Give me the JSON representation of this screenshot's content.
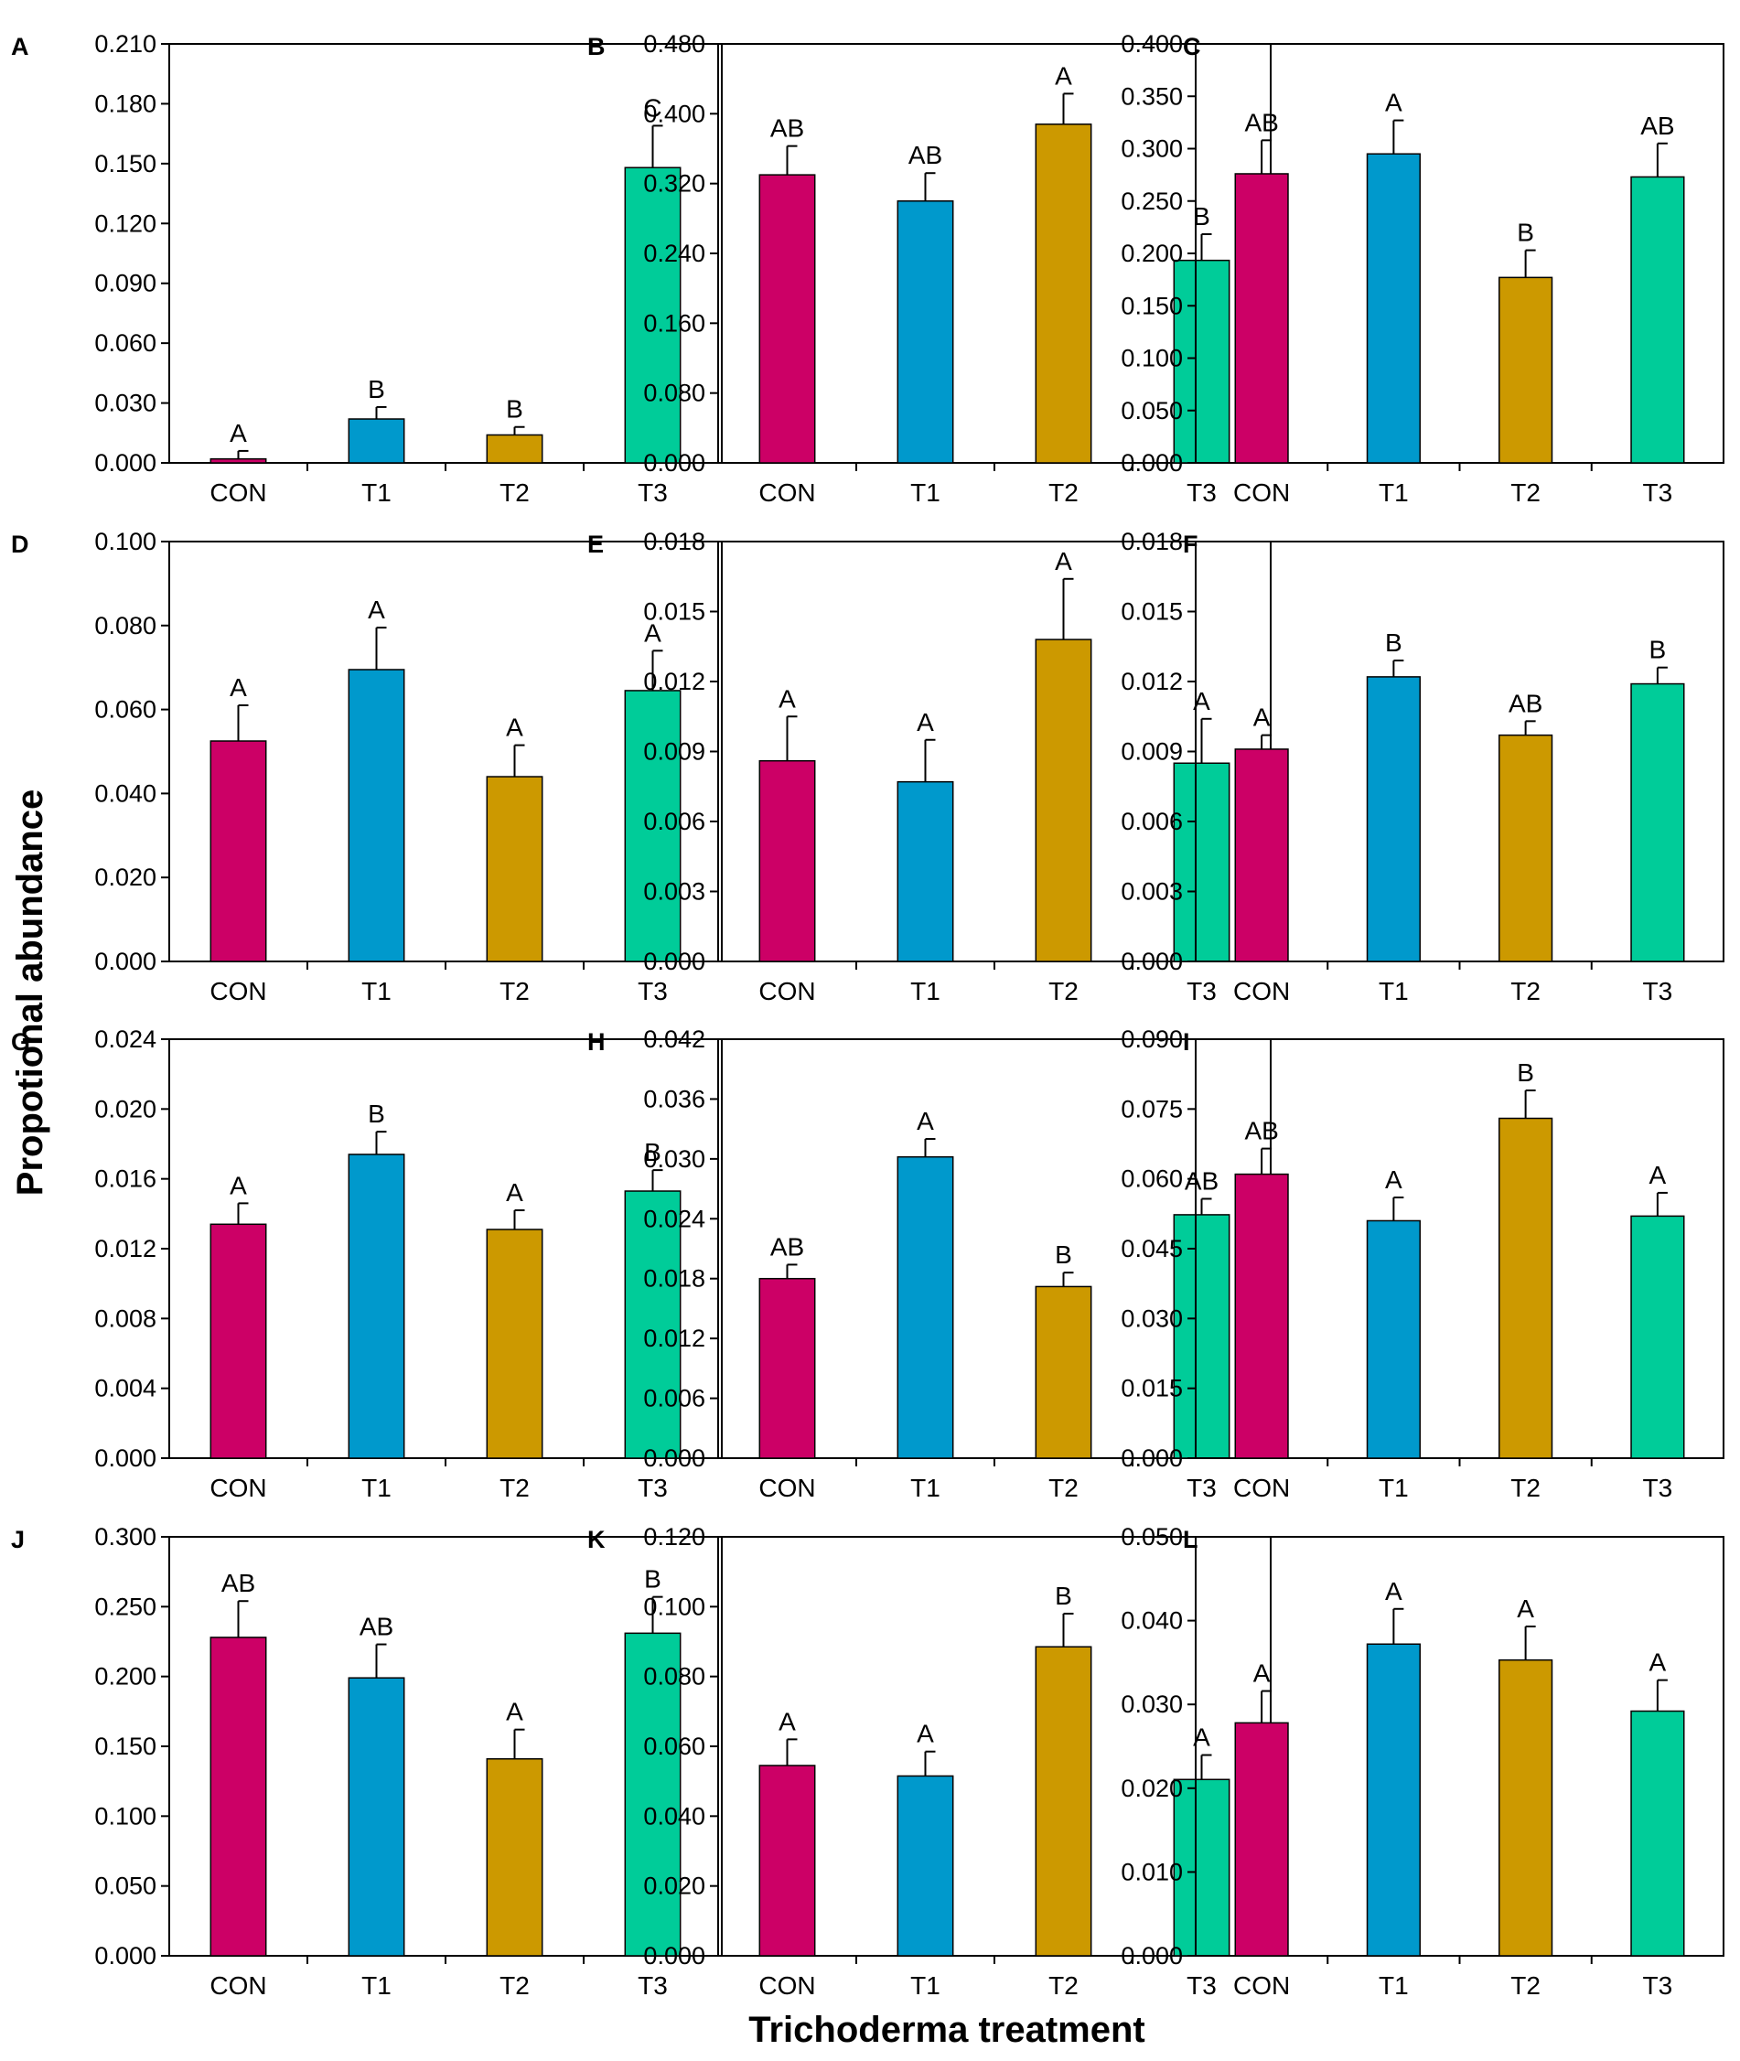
{
  "figure": {
    "ylabel": "Propotional abundance",
    "xlabel": "Trichoderma treatment"
  },
  "colors": {
    "CON": "#cc0066",
    "T1": "#0099cc",
    "T2": "#cc9900",
    "T3": "#00cc99"
  },
  "chart_data": [
    {
      "panel": "A",
      "type": "bar",
      "categories": [
        "CON",
        "T1",
        "T2",
        "T3"
      ],
      "values": [
        0.002,
        0.022,
        0.014,
        0.148
      ],
      "errors": [
        0.004,
        0.006,
        0.004,
        0.021
      ],
      "letters": [
        "A",
        "B",
        "B",
        "C"
      ],
      "ylim": [
        0,
        0.21
      ],
      "ticks": [
        "0.000",
        "0.030",
        "0.060",
        "0.090",
        "0.120",
        "0.150",
        "0.180",
        "0.210"
      ]
    },
    {
      "panel": "B",
      "type": "bar",
      "categories": [
        "CON",
        "T1",
        "T2",
        "T3"
      ],
      "values": [
        0.33,
        0.3,
        0.388,
        0.232
      ],
      "errors": [
        0.033,
        0.032,
        0.035,
        0.03
      ],
      "letters": [
        "AB",
        "AB",
        "A",
        "B"
      ],
      "ylim": [
        0,
        0.48
      ],
      "ticks": [
        "0.000",
        "0.080",
        "0.160",
        "0.240",
        "0.320",
        "0.400",
        "0.480"
      ]
    },
    {
      "panel": "C",
      "type": "bar",
      "categories": [
        "CON",
        "T1",
        "T2",
        "T3"
      ],
      "values": [
        0.276,
        0.295,
        0.177,
        0.273
      ],
      "errors": [
        0.032,
        0.032,
        0.026,
        0.032
      ],
      "letters": [
        "AB",
        "A",
        "B",
        "AB"
      ],
      "ylim": [
        0,
        0.4
      ],
      "ticks": [
        "0.000",
        "0.050",
        "0.100",
        "0.150",
        "0.200",
        "0.250",
        "0.300",
        "0.350",
        "0.400"
      ]
    },
    {
      "panel": "D",
      "type": "bar",
      "categories": [
        "CON",
        "T1",
        "T2",
        "T3"
      ],
      "values": [
        0.0525,
        0.0695,
        0.044,
        0.0645
      ],
      "errors": [
        0.0085,
        0.01,
        0.0075,
        0.0095
      ],
      "letters": [
        "A",
        "A",
        "A",
        "A"
      ],
      "ylim": [
        0,
        0.1
      ],
      "ticks": [
        "0.000",
        "0.020",
        "0.040",
        "0.060",
        "0.080",
        "0.100"
      ]
    },
    {
      "panel": "E",
      "type": "bar",
      "categories": [
        "CON",
        "T1",
        "T2",
        "T3"
      ],
      "values": [
        0.0086,
        0.0077,
        0.0138,
        0.0085
      ],
      "errors": [
        0.0019,
        0.0018,
        0.0026,
        0.0019
      ],
      "letters": [
        "A",
        "A",
        "A",
        "A"
      ],
      "ylim": [
        0,
        0.018
      ],
      "ticks": [
        "0.000",
        "0.003",
        "0.006",
        "0.009",
        "0.012",
        "0.015",
        "0.018"
      ]
    },
    {
      "panel": "F",
      "type": "bar",
      "categories": [
        "CON",
        "T1",
        "T2",
        "T3"
      ],
      "values": [
        0.0091,
        0.0122,
        0.0097,
        0.0119
      ],
      "errors": [
        0.0006,
        0.0007,
        0.0006,
        0.0007
      ],
      "letters": [
        "A",
        "B",
        "AB",
        "B"
      ],
      "ylim": [
        0,
        0.018
      ],
      "ticks": [
        "0.000",
        "0.003",
        "0.006",
        "0.009",
        "0.012",
        "0.015",
        "0.018"
      ]
    },
    {
      "panel": "G",
      "type": "bar",
      "categories": [
        "CON",
        "T1",
        "T2",
        "T3"
      ],
      "values": [
        0.0134,
        0.0174,
        0.0131,
        0.0153
      ],
      "errors": [
        0.0012,
        0.0013,
        0.0011,
        0.0012
      ],
      "letters": [
        "A",
        "B",
        "A",
        "B"
      ],
      "ylim": [
        0,
        0.024
      ],
      "ticks": [
        "0.000",
        "0.004",
        "0.008",
        "0.012",
        "0.016",
        "0.020",
        "0.024"
      ]
    },
    {
      "panel": "H",
      "type": "bar",
      "categories": [
        "CON",
        "T1",
        "T2",
        "T3"
      ],
      "values": [
        0.018,
        0.0302,
        0.0172,
        0.0244
      ],
      "errors": [
        0.0014,
        0.0018,
        0.0014,
        0.0016
      ],
      "letters": [
        "AB",
        "A",
        "B",
        "AB"
      ],
      "ylim": [
        0,
        0.042
      ],
      "ticks": [
        "0.000",
        "0.006",
        "0.012",
        "0.018",
        "0.024",
        "0.030",
        "0.036",
        "0.042"
      ]
    },
    {
      "panel": "I",
      "type": "bar",
      "categories": [
        "CON",
        "T1",
        "T2",
        "T3"
      ],
      "values": [
        0.061,
        0.051,
        0.073,
        0.052
      ],
      "errors": [
        0.0055,
        0.005,
        0.006,
        0.005
      ],
      "letters": [
        "AB",
        "A",
        "B",
        "A"
      ],
      "ylim": [
        0,
        0.09
      ],
      "ticks": [
        "0.000",
        "0.015",
        "0.030",
        "0.045",
        "0.060",
        "0.075",
        "0.090"
      ]
    },
    {
      "panel": "J",
      "type": "bar",
      "categories": [
        "CON",
        "T1",
        "T2",
        "T3"
      ],
      "values": [
        0.228,
        0.199,
        0.141,
        0.231
      ],
      "errors": [
        0.026,
        0.024,
        0.021,
        0.026
      ],
      "letters": [
        "AB",
        "AB",
        "A",
        "B"
      ],
      "ylim": [
        0,
        0.3
      ],
      "ticks": [
        "0.000",
        "0.050",
        "0.100",
        "0.150",
        "0.200",
        "0.250",
        "0.300"
      ]
    },
    {
      "panel": "K",
      "type": "bar",
      "categories": [
        "CON",
        "T1",
        "T2",
        "T3"
      ],
      "values": [
        0.0545,
        0.0515,
        0.0885,
        0.0505
      ],
      "errors": [
        0.0075,
        0.007,
        0.0095,
        0.007
      ],
      "letters": [
        "A",
        "A",
        "B",
        "A"
      ],
      "ylim": [
        0,
        0.12
      ],
      "ticks": [
        "0.000",
        "0.020",
        "0.040",
        "0.060",
        "0.080",
        "0.100",
        "0.120"
      ]
    },
    {
      "panel": "L",
      "type": "bar",
      "categories": [
        "CON",
        "T1",
        "T2",
        "T3"
      ],
      "values": [
        0.0278,
        0.0372,
        0.0353,
        0.0292
      ],
      "errors": [
        0.0038,
        0.0042,
        0.004,
        0.0037
      ],
      "letters": [
        "A",
        "A",
        "A",
        "A"
      ],
      "ylim": [
        0,
        0.05
      ],
      "ticks": [
        "0.000",
        "0.010",
        "0.020",
        "0.030",
        "0.040",
        "0.050"
      ]
    }
  ]
}
